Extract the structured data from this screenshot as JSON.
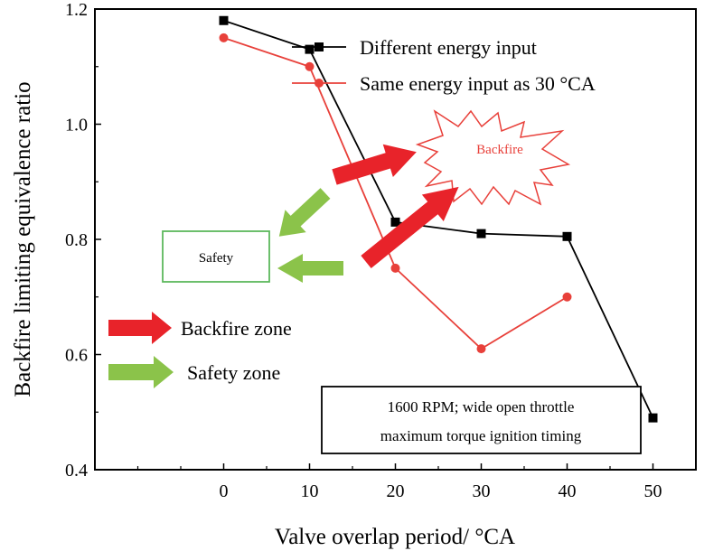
{
  "chart_data": {
    "type": "line",
    "xlabel": "Valve overlap period/ °CA",
    "ylabel": "Backfire limiting equivalence ratio",
    "xlim": [
      -15,
      55
    ],
    "ylim": [
      0.4,
      1.2
    ],
    "xticks": [
      0,
      10,
      20,
      30,
      40,
      50
    ],
    "yticks": [
      0.4,
      0.6,
      0.8,
      1.0,
      1.2
    ],
    "ytick_labels": [
      "0.4",
      "0.6",
      "0.8",
      "1.0",
      "1.2"
    ],
    "grid": false,
    "legend_position": "top-right",
    "series": [
      {
        "name": "Different energy input",
        "color": "#000000",
        "marker": "square",
        "x": [
          0,
          10,
          20,
          30,
          40,
          50
        ],
        "y": [
          1.18,
          1.13,
          0.83,
          0.81,
          0.805,
          0.49
        ]
      },
      {
        "name": "Same energy input as 30 °CA",
        "color": "#e8403a",
        "marker": "circle",
        "x": [
          0,
          10,
          20,
          30,
          40
        ],
        "y": [
          1.15,
          1.1,
          0.75,
          0.61,
          0.7
        ]
      }
    ],
    "annotations": {
      "backfire_burst": "Backfire",
      "safety_box": "Safety",
      "zone_legend": [
        {
          "label": "Backfire zone",
          "color": "#e8232a"
        },
        {
          "label": "Safety zone",
          "color": "#8bc34a"
        }
      ],
      "conditions": [
        "1600 RPM; wide open throttle",
        "maximum torque ignition timing"
      ]
    }
  }
}
